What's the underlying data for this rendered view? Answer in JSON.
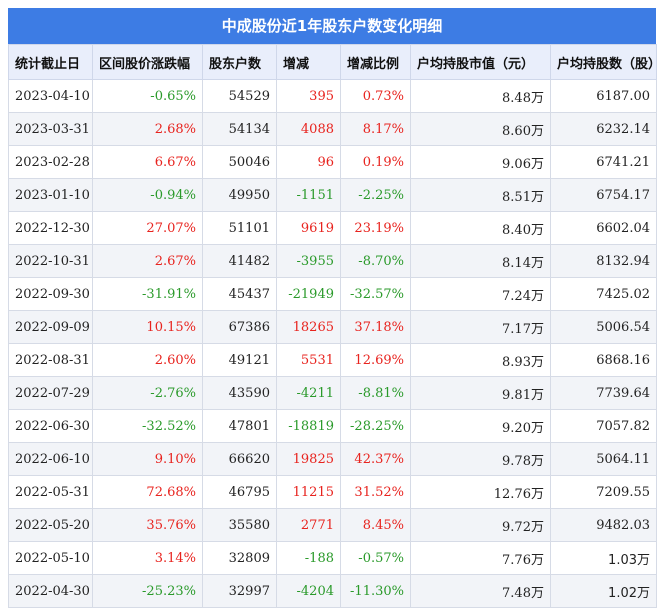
{
  "title": "中成股份近1年股东户数变化明细",
  "colors": {
    "up": "#e8231e",
    "down": "#2a9a2a",
    "neutral": "#222222"
  },
  "columns": [
    "统计截止日",
    "区间股价涨跌幅",
    "股东户数",
    "增减",
    "增减比例",
    "户均持股市值（元）",
    "户均持股数（股）"
  ],
  "rows": [
    [
      "2023-04-10",
      "-0.65%",
      "54529",
      "395",
      "0.73%",
      "8.48",
      "6187.00"
    ],
    [
      "2023-03-31",
      "2.68%",
      "54134",
      "4088",
      "8.17%",
      "8.60",
      "6232.14"
    ],
    [
      "2023-02-28",
      "6.67%",
      "50046",
      "96",
      "0.19%",
      "9.06",
      "6741.21"
    ],
    [
      "2023-01-10",
      "-0.94%",
      "49950",
      "-1151",
      "-2.25%",
      "8.51",
      "6754.17"
    ],
    [
      "2022-12-30",
      "27.07%",
      "51101",
      "9619",
      "23.19%",
      "8.40",
      "6602.04"
    ],
    [
      "2022-10-31",
      "2.67%",
      "41482",
      "-3955",
      "-8.70%",
      "8.14",
      "8132.94"
    ],
    [
      "2022-09-30",
      "-31.91%",
      "45437",
      "-21949",
      "-32.57%",
      "7.24",
      "7425.02"
    ],
    [
      "2022-09-09",
      "10.15%",
      "67386",
      "18265",
      "37.18%",
      "7.17",
      "5006.54"
    ],
    [
      "2022-08-31",
      "2.60%",
      "49121",
      "5531",
      "12.69%",
      "8.93",
      "6868.16"
    ],
    [
      "2022-07-29",
      "-2.76%",
      "43590",
      "-4211",
      "-8.81%",
      "9.81",
      "7739.64"
    ],
    [
      "2022-06-30",
      "-32.52%",
      "47801",
      "-18819",
      "-28.25%",
      "9.20",
      "7057.82"
    ],
    [
      "2022-06-10",
      "9.10%",
      "66620",
      "19825",
      "42.37%",
      "9.78",
      "5064.11"
    ],
    [
      "2022-05-31",
      "72.68%",
      "46795",
      "11215",
      "31.52%",
      "12.76",
      "7209.55"
    ],
    [
      "2022-05-20",
      "35.76%",
      "35580",
      "2771",
      "8.45%",
      "9.72",
      "9482.03"
    ],
    [
      "2022-05-10",
      "3.14%",
      "32809",
      "-188",
      "-0.57%",
      "7.76",
      "1.03万"
    ],
    [
      "2022-04-30",
      "-25.23%",
      "32997",
      "-4204",
      "-11.30%",
      "7.48",
      "1.02万"
    ]
  ],
  "value_unit": "万"
}
